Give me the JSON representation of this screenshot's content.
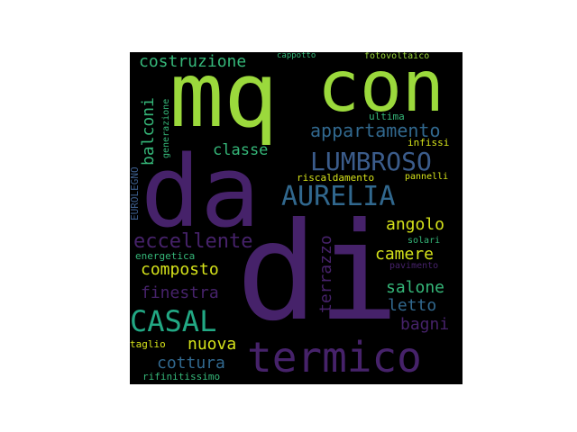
{
  "colors": {
    "background": "#000000",
    "page": "#ffffff"
  },
  "words": {
    "mq": "mq",
    "con": "con",
    "da": "da",
    "di": "di",
    "termico": "termico",
    "casal": "CASAL",
    "aurelia": "AURELIA",
    "lumbroso": "LUMBROSO",
    "eccellente": "eccellente",
    "appartamento": "appartamento",
    "costruzione": "costruzione",
    "balconi": "balconi",
    "classe": "classe",
    "angolo": "angolo",
    "camere": "camere",
    "composto": "composto",
    "finestra": "finestra",
    "terrazzo": "terrazzo",
    "salone": "salone",
    "letto": "letto",
    "bagni": "bagni",
    "nuova": "nuova",
    "cottura": "cottura",
    "taglio": "taglio",
    "rifinitissimo": "rifinitissimo",
    "energetica": "energetica",
    "eurolegno": "EUROLEGNO",
    "generazione": "generazione",
    "riscaldamento": "riscaldamento",
    "ultima": "ultima",
    "infissi": "infissi",
    "pannelli": "pannelli",
    "solari": "solari",
    "pavimento": "pavimento",
    "cappotto": "cappotto",
    "fotovoltaico": "fotovoltaico"
  }
}
